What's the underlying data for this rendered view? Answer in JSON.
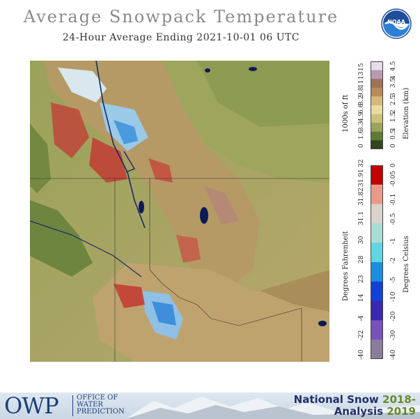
{
  "title": "Average Snowpack Temperature",
  "subtitle": "24-Hour Average Ending 2021-10-01 06 UTC",
  "logo": {
    "text": "NOAA"
  },
  "elevation_bar": {
    "left_label": "1000s of ft",
    "right_label": "Elevation (km)",
    "ft_ticks": [
      "0",
      "1.6",
      "3.3",
      "4.9",
      "6.6",
      "8.2",
      "9.8",
      "11",
      "13",
      "15"
    ],
    "km_ticks": [
      "0",
      "0.5",
      "1",
      "1.5",
      "2",
      "2.5",
      "3",
      "3.5",
      "4",
      "4.5"
    ],
    "colors": [
      "#30461e",
      "#5e7a33",
      "#9aa55b",
      "#c8c27c",
      "#e8dd9e",
      "#d8b97a",
      "#b88a5a",
      "#9b7556",
      "#b99ab1",
      "#e7dcea"
    ]
  },
  "temperature_bar": {
    "left_label": "Degrees Fahrenheit",
    "right_label": "Degrees Celsius",
    "f_ticks": [
      "32",
      "31.91",
      "31.82",
      "31.1",
      "30",
      "28",
      "23",
      "14",
      "-4",
      "-22",
      "-40"
    ],
    "c_ticks": [
      "0",
      "-0.05",
      "-0.1",
      "-0.5",
      "-1",
      "-2",
      "-5",
      "-10",
      "-20",
      "-30",
      "-40"
    ],
    "colors": [
      "#c40000",
      "#e89b88",
      "#d9d2cd",
      "#a8ddd4",
      "#5fd6e2",
      "#1a8fe2",
      "#1141d8",
      "#3a27b2",
      "#7652ba",
      "#8a7d9c"
    ]
  },
  "footer": {
    "owp": "OWP",
    "owp_lines": [
      "OFFICE OF",
      "WATER",
      "PREDICTION"
    ],
    "nsa_line1": "National Snow",
    "nsa_years1": "2018-",
    "nsa_line2": "Analysis",
    "nsa_years2": "2019"
  }
}
